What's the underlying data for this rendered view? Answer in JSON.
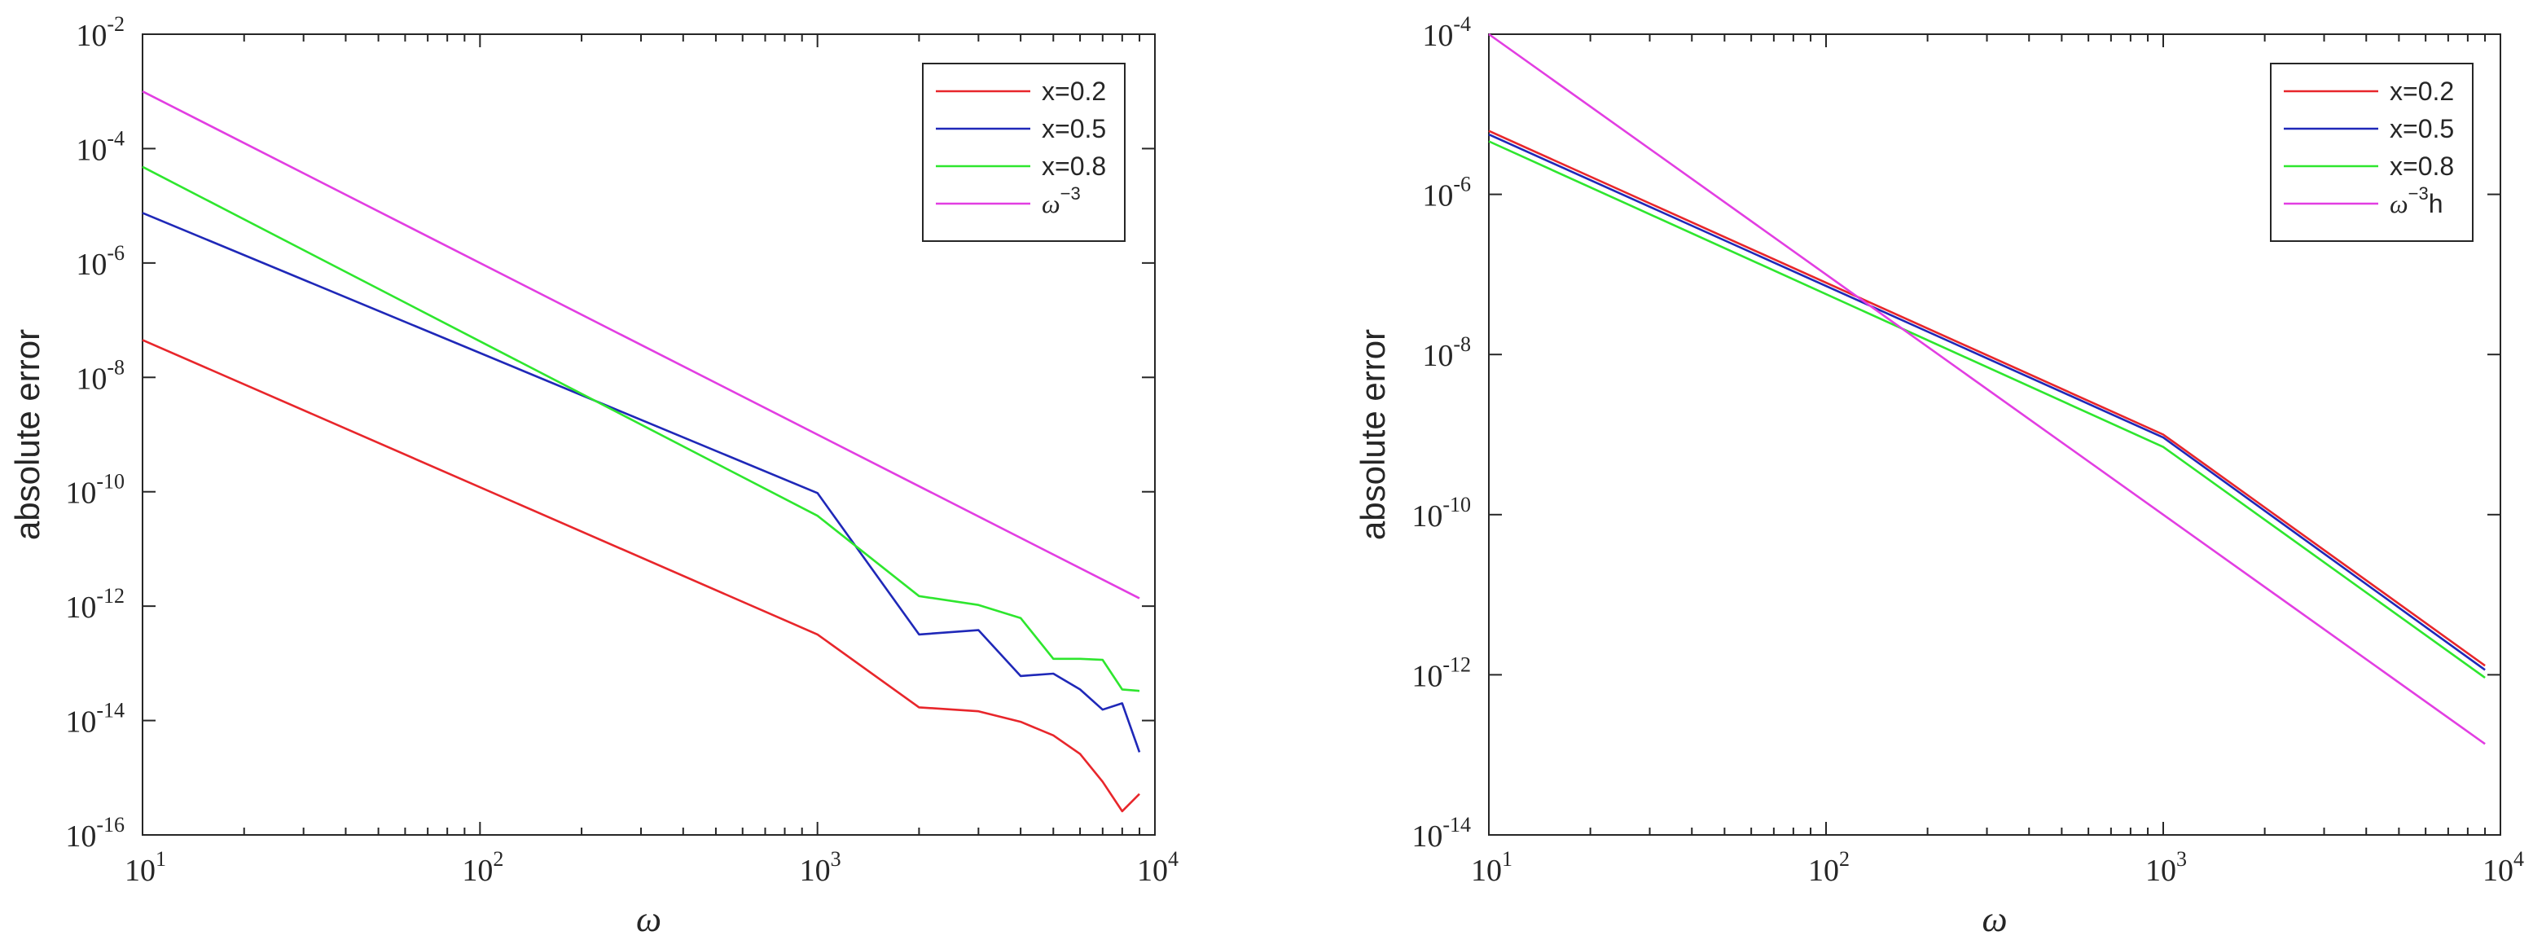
{
  "chart_data": [
    {
      "type": "line",
      "xscale": "log",
      "yscale": "log",
      "xlabel": "ω",
      "ylabel": "absolute error",
      "xlim": [
        10,
        10000
      ],
      "ylim": [
        1e-16,
        0.01
      ],
      "x_ticks": [
        {
          "value": 10,
          "base": "10",
          "exp": "1"
        },
        {
          "value": 100,
          "base": "10",
          "exp": "2"
        },
        {
          "value": 1000,
          "base": "10",
          "exp": "3"
        },
        {
          "value": 10000,
          "base": "10",
          "exp": "4"
        }
      ],
      "y_ticks": [
        {
          "value": 1e-16,
          "base": "10",
          "exp": "-16"
        },
        {
          "value": 1e-14,
          "base": "10",
          "exp": "-14"
        },
        {
          "value": 1e-12,
          "base": "10",
          "exp": "-12"
        },
        {
          "value": 1e-10,
          "base": "10",
          "exp": "-10"
        },
        {
          "value": 1e-08,
          "base": "10",
          "exp": "-8"
        },
        {
          "value": 1e-06,
          "base": "10",
          "exp": "-6"
        },
        {
          "value": 0.0001,
          "base": "10",
          "exp": "-4"
        },
        {
          "value": 0.01,
          "base": "10",
          "exp": "-2"
        }
      ],
      "legend_position": "top-right",
      "series": [
        {
          "name": "x=0.2",
          "label_base": "x=0.2",
          "label_sup": "",
          "label_tail": "",
          "color": "#e8262b",
          "x": [
            10,
            1000,
            2000,
            3000,
            4000,
            5000,
            6000,
            7000,
            8000,
            9000
          ],
          "y": [
            4.5e-08,
            3.2e-13,
            1.7e-14,
            1.45e-14,
            9.5e-15,
            5.5e-15,
            2.6e-15,
            8.5e-16,
            2.6e-16,
            5.2e-16
          ]
        },
        {
          "name": "x=0.5",
          "label_base": "x=0.5",
          "label_sup": "",
          "label_tail": "",
          "color": "#1f28b8",
          "x": [
            10,
            1000,
            2000,
            3000,
            4000,
            5000,
            6000,
            7000,
            8000,
            9000
          ],
          "y": [
            7.5e-06,
            9.5e-11,
            3.2e-13,
            3.8e-13,
            6e-14,
            6.6e-14,
            3.5e-14,
            1.55e-14,
            2e-14,
            2.8e-15
          ]
        },
        {
          "name": "x=0.8",
          "label_base": "x=0.8",
          "label_sup": "",
          "label_tail": "",
          "color": "#2ee62e",
          "x": [
            10,
            1000,
            2000,
            3000,
            4000,
            5000,
            6000,
            7000,
            8000,
            9000
          ],
          "y": [
            4.8e-05,
            3.8e-11,
            1.5e-12,
            1.05e-12,
            6.2e-13,
            1.2e-13,
            1.2e-13,
            1.15e-13,
            3.5e-14,
            3.3e-14
          ]
        },
        {
          "name": "ω^-3",
          "label_base": "ω",
          "label_sup": "−3",
          "label_tail": "",
          "color": "#e23ee2",
          "x": [
            10,
            9000
          ],
          "y": [
            0.001,
            1.37e-12
          ]
        }
      ]
    },
    {
      "type": "line",
      "xscale": "log",
      "yscale": "log",
      "xlabel": "ω",
      "ylabel": "absolute error",
      "xlim": [
        10,
        10000
      ],
      "ylim": [
        1e-14,
        0.0001
      ],
      "x_ticks": [
        {
          "value": 10,
          "base": "10",
          "exp": "1"
        },
        {
          "value": 100,
          "base": "10",
          "exp": "2"
        },
        {
          "value": 1000,
          "base": "10",
          "exp": "3"
        },
        {
          "value": 10000,
          "base": "10",
          "exp": "4"
        }
      ],
      "y_ticks": [
        {
          "value": 1e-14,
          "base": "10",
          "exp": "-14"
        },
        {
          "value": 1e-12,
          "base": "10",
          "exp": "-12"
        },
        {
          "value": 1e-10,
          "base": "10",
          "exp": "-10"
        },
        {
          "value": 1e-08,
          "base": "10",
          "exp": "-8"
        },
        {
          "value": 1e-06,
          "base": "10",
          "exp": "-6"
        },
        {
          "value": 0.0001,
          "base": "10",
          "exp": "-4"
        }
      ],
      "legend_position": "top-right",
      "series": [
        {
          "name": "x=0.2",
          "label_base": "x=0.2",
          "label_sup": "",
          "label_tail": "",
          "color": "#e8262b",
          "x": [
            10,
            1000,
            9000
          ],
          "y": [
            6.2e-06,
            1e-09,
            1.3e-12
          ]
        },
        {
          "name": "x=0.5",
          "label_base": "x=0.5",
          "label_sup": "",
          "label_tail": "",
          "color": "#1f28b8",
          "x": [
            10,
            1000,
            9000
          ],
          "y": [
            5.6e-06,
            9.2e-10,
            1.15e-12
          ]
        },
        {
          "name": "x=0.8",
          "label_base": "x=0.8",
          "label_sup": "",
          "label_tail": "",
          "color": "#2ee62e",
          "x": [
            10,
            1000,
            9000
          ],
          "y": [
            4.6e-06,
            7e-10,
            9.2e-13
          ]
        },
        {
          "name": "ω^-3h",
          "label_base": "ω",
          "label_sup": "−3",
          "label_tail": "h",
          "color": "#e23ee2",
          "x": [
            10,
            9000
          ],
          "y": [
            0.0001,
            1.37e-13
          ]
        }
      ]
    }
  ]
}
